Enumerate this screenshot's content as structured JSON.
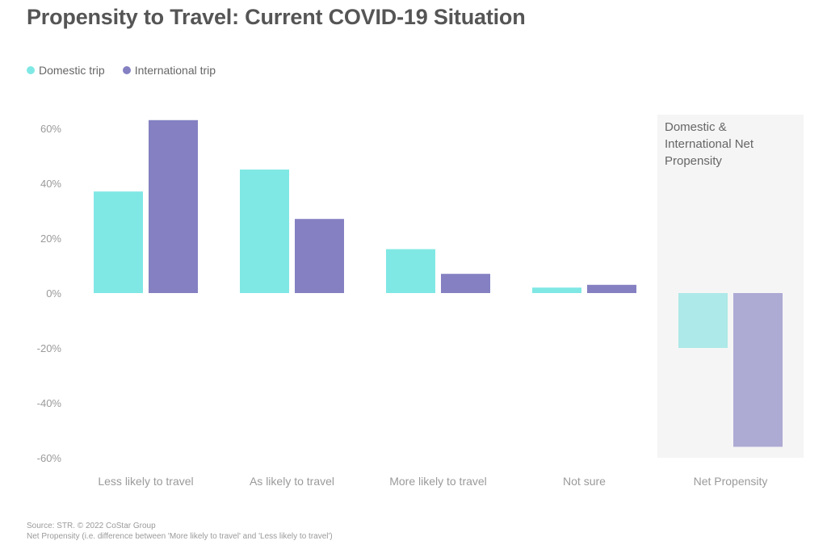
{
  "title": "Propensity to Travel: Current COVID-19 Situation",
  "legend": [
    {
      "label": "Domestic trip",
      "color": "#80e8e4"
    },
    {
      "label": "International trip",
      "color": "#8480c2"
    }
  ],
  "highlight_panel": {
    "label": "Domestic & International Net Propensity",
    "background": "#f5f5f5"
  },
  "footer": {
    "source": "Source: STR. © 2022 CoStar Group",
    "note": "Net Propensity (i.e. difference between 'More likely to travel' and 'Less likely to travel')"
  },
  "chart_data": {
    "type": "bar",
    "title": "Propensity to Travel: Current COVID-19 Situation",
    "categories": [
      "Less likely to travel",
      "As likely to travel",
      "More likely to travel",
      "Not sure",
      "Net Propensity"
    ],
    "series": [
      {
        "name": "Domestic trip",
        "color": "#80e8e4",
        "net_color": "#ade9e8",
        "values": [
          37,
          45,
          16,
          2,
          -20
        ]
      },
      {
        "name": "International trip",
        "color": "#8480c2",
        "net_color": "#adaad4",
        "values": [
          63,
          27,
          7,
          3,
          -56
        ]
      }
    ],
    "y_ticks": [
      "60%",
      "40%",
      "20%",
      "0%",
      "-20%",
      "-40%",
      "-60%"
    ],
    "ylim": [
      -60,
      60
    ],
    "grid": false,
    "legend_position": "top-left"
  }
}
